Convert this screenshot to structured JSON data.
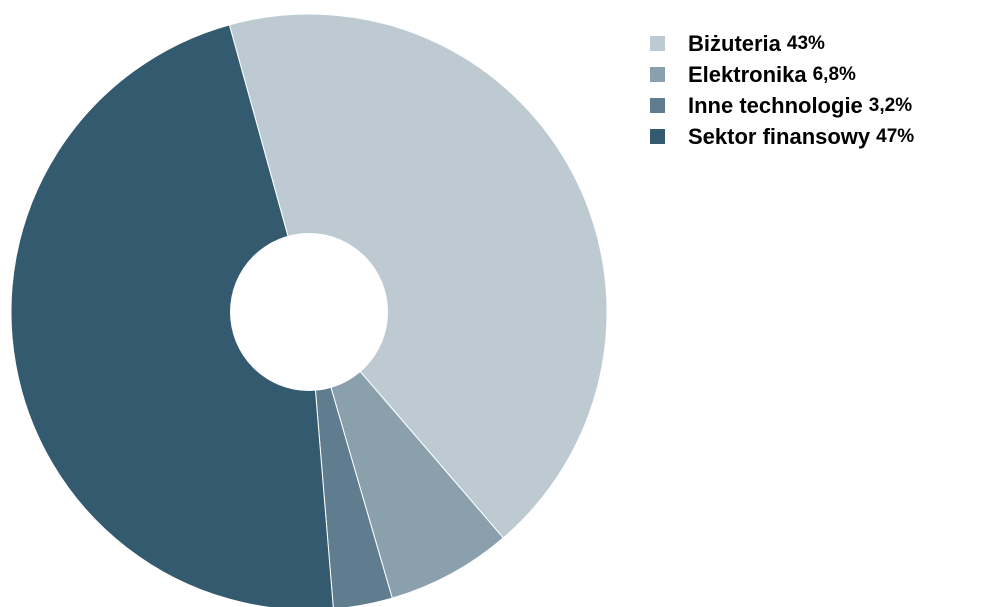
{
  "chart_data": {
    "type": "pie",
    "donut": true,
    "legend_position": "top-right",
    "slices": [
      {
        "label": "Biżuteria",
        "value": 43,
        "value_label": "43%",
        "color": "#BDCAD2"
      },
      {
        "label": "Elektronika",
        "value": 6.8,
        "value_label": "6,8%",
        "color": "#8AA0AD"
      },
      {
        "label": "Inne technologie",
        "value": 3.2,
        "value_label": "3,2%",
        "color": "#5F7D8E"
      },
      {
        "label": "Sektor finansowy",
        "value": 47,
        "value_label": "47%",
        "color": "#335A6F"
      }
    ]
  }
}
